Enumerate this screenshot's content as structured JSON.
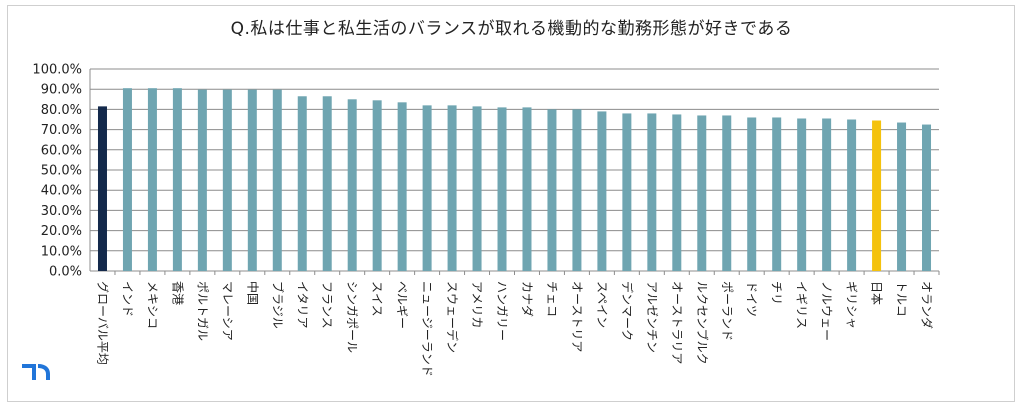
{
  "chart_data": {
    "type": "bar",
    "title": "Q.私は仕事と私生活のバランスが取れる機動的な勤務形態が好きである",
    "xlabel": "",
    "ylabel": "",
    "ylim": [
      0,
      100
    ],
    "y_ticks": [
      "0.0%",
      "10.0%",
      "20.0%",
      "30.0%",
      "40.0%",
      "50.0%",
      "60.0%",
      "70.0%",
      "80.0%",
      "90.0%",
      "100.0%"
    ],
    "grid": true,
    "categories": [
      "グローバル平均",
      "インド",
      "メキシコ",
      "香港",
      "ポルトガル",
      "マレーシア",
      "中国",
      "ブラジル",
      "イタリア",
      "フランス",
      "シンガポール",
      "スイス",
      "ベルギー",
      "ニュージーランド",
      "スウェーデン",
      "アメリカ",
      "ハンガリー",
      "カナダ",
      "チェコ",
      "オーストリア",
      "スペイン",
      "デンマーク",
      "アルゼンチン",
      "オーストラリア",
      "ルクセンブルク",
      "ポーランド",
      "ドイツ",
      "チリ",
      "イギリス",
      "ノルウェー",
      "ギリシャ",
      "日本",
      "トルコ",
      "オランダ"
    ],
    "values": [
      81.5,
      90.5,
      90.5,
      90.5,
      89.8,
      89.8,
      89.8,
      89.8,
      86.5,
      86.5,
      85.0,
      84.5,
      83.5,
      82.0,
      82.0,
      81.5,
      81.0,
      81.0,
      80.0,
      80.0,
      79.0,
      78.0,
      78.0,
      77.5,
      77.0,
      77.0,
      76.0,
      76.0,
      75.5,
      75.5,
      75.0,
      74.5,
      73.5,
      72.5
    ],
    "colors": {
      "default": "#6fa5b1",
      "global_average": "#13294b",
      "japan": "#f4c20d"
    }
  },
  "logo": {
    "name": "randstad-logo",
    "color": "#2175d9"
  }
}
